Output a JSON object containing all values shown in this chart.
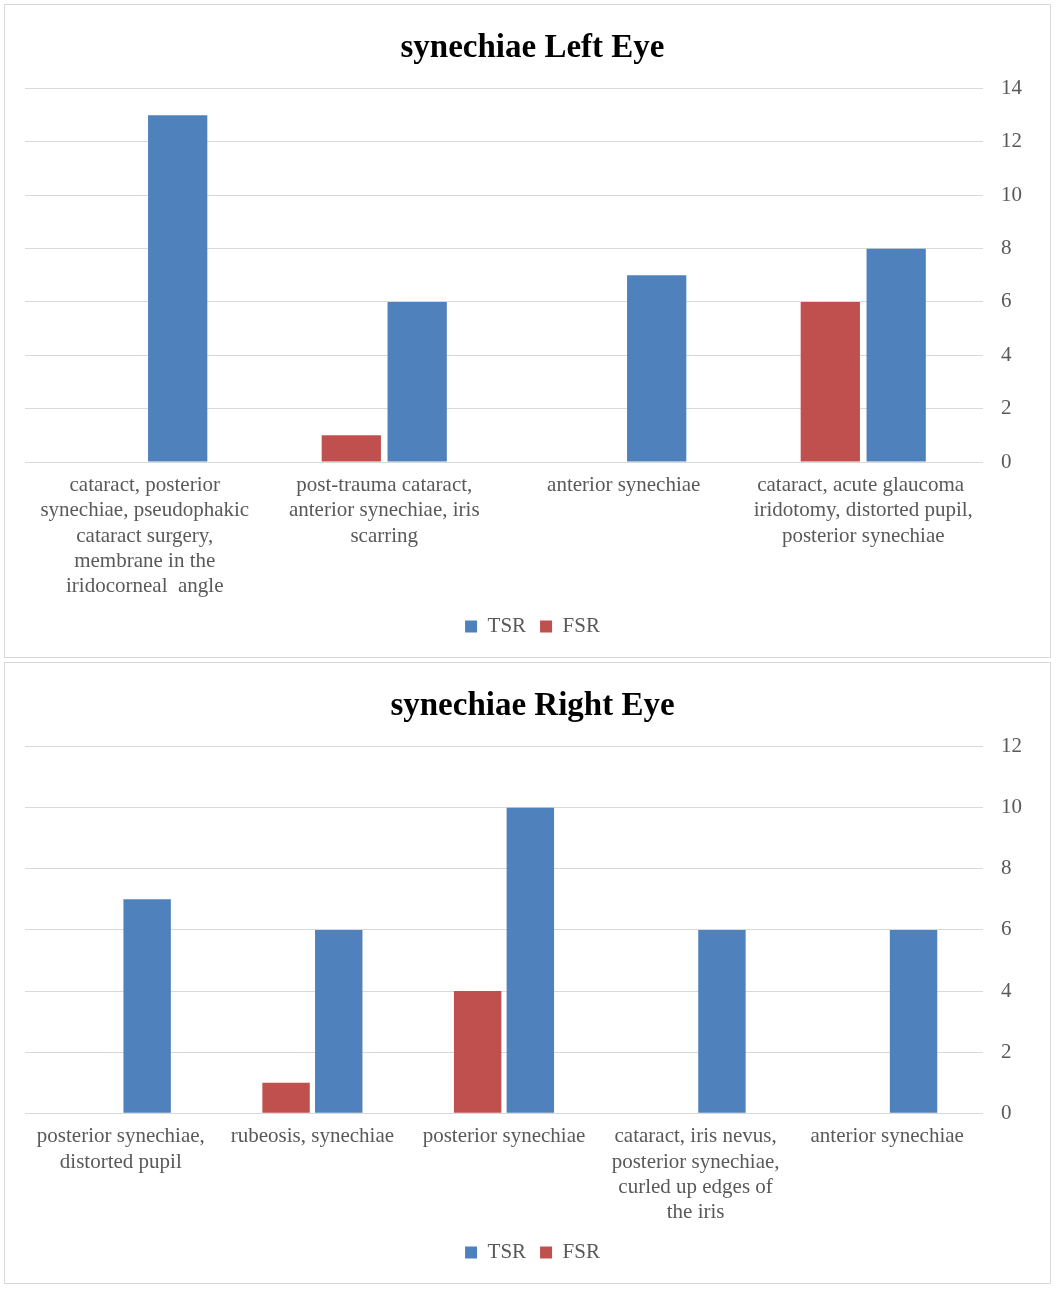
{
  "chart_data": [
    {
      "type": "bar",
      "title": "synechiae Left Eye",
      "categories": [
        "cataract, posterior synechiae, pseudophakic cataract surgery, membrane in the iridocorneal  angle",
        "post-trauma cataract, anterior synechiae, iris scarring",
        "anterior synechiae",
        "cataract, acute glaucoma  iridotomy, distorted pupil, posterior synechiae"
      ],
      "series": [
        {
          "name": "TSR",
          "color": "#4f81bd",
          "values": [
            13,
            6,
            7,
            8
          ]
        },
        {
          "name": "FSR",
          "color": "#c0504d",
          "values": [
            0,
            1,
            0,
            6
          ]
        }
      ],
      "ylim": [
        0,
        14
      ],
      "yticks": [
        0,
        2,
        4,
        6,
        8,
        10,
        12,
        14
      ],
      "grid": "y",
      "legend": "bottom"
    },
    {
      "type": "bar",
      "title": "synechiae Right Eye",
      "categories": [
        "posterior synechiae, distorted pupil",
        "rubeosis, synechiae",
        "posterior synechiae",
        "cataract, iris nevus, posterior synechiae, curled up edges of the iris",
        "anterior synechiae"
      ],
      "series": [
        {
          "name": "TSR",
          "color": "#4f81bd",
          "values": [
            7,
            6,
            10,
            6,
            6
          ]
        },
        {
          "name": "FSR",
          "color": "#c0504d",
          "values": [
            0,
            1,
            4,
            0,
            0
          ]
        }
      ],
      "ylim": [
        0,
        12
      ],
      "yticks": [
        0,
        2,
        4,
        6,
        8,
        10,
        12
      ],
      "grid": "y",
      "legend": "bottom"
    }
  ]
}
